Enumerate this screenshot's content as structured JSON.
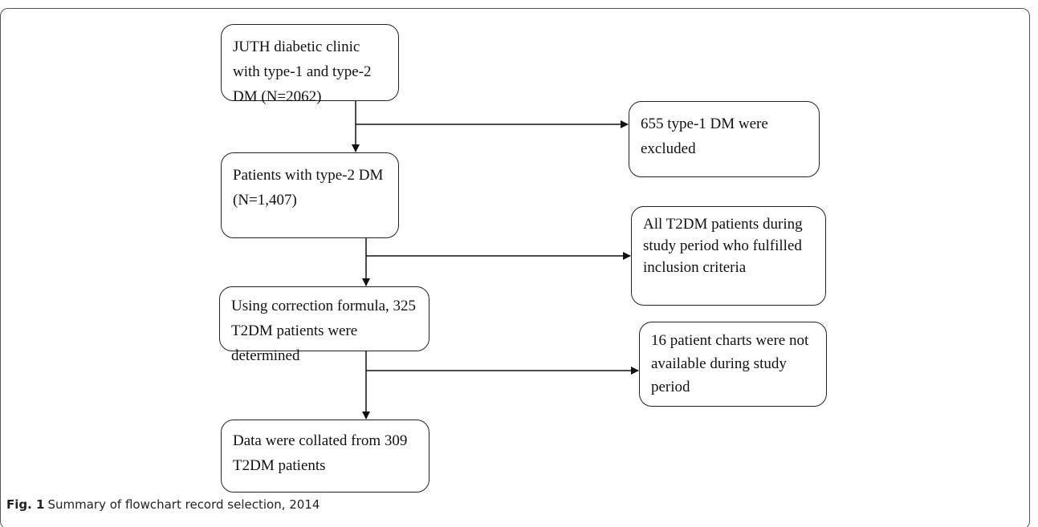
{
  "nodes": [
    {
      "label": "JUTH diabetic clinic with type-1 and type-2 DM (N=2062)"
    },
    {
      "label": "655 type-1 DM were excluded"
    },
    {
      "label": "Patients with type-2 DM (N=1,407)"
    },
    {
      "label": "All T2DM patients during study period who fulfilled inclusion criteria"
    },
    {
      "label": "Using correction formula, 325 T2DM patients were determined"
    },
    {
      "label": "16 patient charts were not available during study period"
    },
    {
      "label": "Data were collated from 309 T2DM patients"
    }
  ],
  "caption": {
    "label": "Fig. 1",
    "text": "Summary of flowchart record selection, 2014"
  }
}
